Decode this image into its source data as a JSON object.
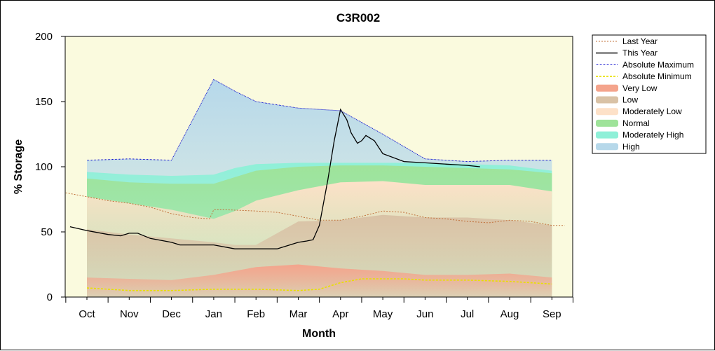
{
  "chart_data": {
    "type": "area",
    "title": "C3R002",
    "xlabel": "Month",
    "ylabel": "% Storage",
    "categories": [
      "Oct",
      "Nov",
      "Dec",
      "Jan",
      "Feb",
      "Mar",
      "Apr",
      "May",
      "Jun",
      "Jul",
      "Aug",
      "Sep"
    ],
    "ylim": [
      0,
      200
    ],
    "yticks": [
      0,
      50,
      100,
      150,
      200
    ],
    "grid": false,
    "legend_position": "right",
    "colors": {
      "very_low": "#f4a48c",
      "low": "#d9c2a6",
      "moderately_low": "#fde1c8",
      "normal": "#9fe39a",
      "moderately_high": "#8ff0d8",
      "high": "#b6d8ea",
      "plot_bg": "#fafade",
      "last_year": "#c0703a",
      "this_year": "#000000",
      "abs_max": "#0000cc",
      "abs_min": "#e8e000"
    },
    "legend": [
      {
        "key": "last_year",
        "label": "Last Year"
      },
      {
        "key": "this_year",
        "label": "This Year"
      },
      {
        "key": "abs_max",
        "label": "Absolute Maximum"
      },
      {
        "key": "abs_min",
        "label": "Absolute Minimum"
      },
      {
        "key": "very_low",
        "label": "Very Low"
      },
      {
        "key": "low",
        "label": "Low"
      },
      {
        "key": "moderately_low",
        "label": "Moderately Low"
      },
      {
        "key": "normal",
        "label": "Normal"
      },
      {
        "key": "moderately_high",
        "label": "Moderately High"
      },
      {
        "key": "high",
        "label": "High"
      }
    ],
    "bands": {
      "x": [
        0,
        1,
        2,
        3,
        3.5,
        4,
        5,
        6,
        7,
        8,
        9,
        10,
        11
      ],
      "very_low": [
        15,
        14,
        13,
        17,
        20,
        23,
        25,
        22,
        20,
        17,
        17,
        18,
        15
      ],
      "low": [
        52,
        48,
        45,
        42,
        40,
        40,
        58,
        59,
        63,
        61,
        61,
        59,
        55
      ],
      "moderately_low": [
        77,
        72,
        67,
        60,
        66,
        74,
        82,
        88,
        89,
        86,
        86,
        86,
        81
      ],
      "normal": [
        91,
        88,
        87,
        87,
        92,
        97,
        100,
        101,
        101,
        100,
        99,
        98,
        95
      ],
      "moderately_high": [
        96,
        94,
        93,
        94,
        99,
        102,
        103,
        103,
        103,
        103,
        102,
        101,
        97
      ],
      "high": [
        105,
        106,
        105,
        167,
        158,
        150,
        145,
        143,
        125,
        106,
        104,
        105,
        105
      ]
    },
    "series": [
      {
        "name": "Last Year",
        "x": [
          -0.5,
          0,
          0.5,
          1,
          1.5,
          2,
          2.5,
          2.9,
          3,
          3.3,
          4,
          4.5,
          5,
          5.5,
          6,
          6.5,
          7,
          7.5,
          8,
          8.5,
          9,
          9.5,
          10,
          10.5,
          11,
          11.3
        ],
        "values": [
          80,
          77,
          74,
          72,
          69,
          64,
          61,
          60,
          67,
          67,
          66,
          65,
          62,
          59,
          59,
          62,
          66,
          65,
          61,
          60,
          58,
          57,
          59,
          58,
          55,
          55
        ]
      },
      {
        "name": "This Year",
        "x": [
          -0.4,
          0,
          0.5,
          0.8,
          1,
          1.2,
          1.5,
          2,
          2.2,
          2.5,
          3,
          3.5,
          4,
          4.5,
          4.8,
          5,
          5.2,
          5.35,
          5.5,
          5.7,
          5.85,
          6,
          6.15,
          6.25,
          6.4,
          6.5,
          6.6,
          6.8,
          7,
          7.5,
          8,
          8.5,
          9,
          9.3
        ],
        "values": [
          54,
          51,
          48,
          47,
          49,
          49,
          45,
          42,
          40,
          40,
          40,
          37,
          37,
          37,
          40,
          42,
          43,
          44,
          55,
          90,
          120,
          144,
          136,
          126,
          118,
          120,
          124,
          120,
          110,
          104,
          103,
          102,
          101,
          100
        ]
      },
      {
        "name": "Absolute Maximum",
        "x": [
          0,
          1,
          2,
          3,
          3.5,
          4,
          5,
          6,
          7,
          8,
          9,
          10,
          11
        ],
        "values": [
          105,
          106,
          105,
          167,
          158,
          150,
          145,
          143,
          125,
          106,
          104,
          105,
          105
        ]
      },
      {
        "name": "Absolute Minimum",
        "x": [
          0,
          0.5,
          1,
          1.5,
          2,
          3,
          3.5,
          4,
          5,
          5.5,
          6,
          6.5,
          7,
          7.5,
          8,
          9,
          10,
          11
        ],
        "values": [
          7,
          6,
          5,
          5,
          5,
          6,
          6,
          6,
          5,
          6,
          11,
          14,
          14,
          14,
          13,
          13,
          12,
          10
        ]
      }
    ]
  }
}
